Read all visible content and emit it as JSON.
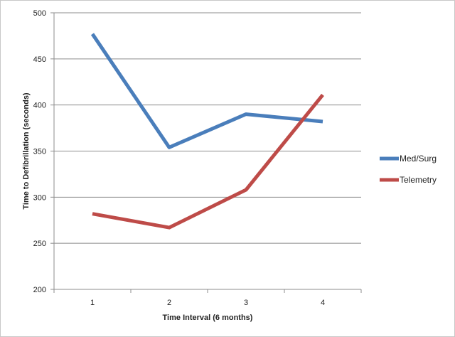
{
  "chart_data": {
    "type": "line",
    "title": "",
    "xlabel": "Time Interval (6 months)",
    "ylabel": "Time to Defibrillation  (seconds)",
    "categories": [
      "1",
      "2",
      "3",
      "4"
    ],
    "ylim": [
      200,
      500
    ],
    "yticks": [
      200,
      250,
      300,
      350,
      400,
      450,
      500
    ],
    "grid": true,
    "legend_position": "right",
    "series": [
      {
        "name": "Med/Surg",
        "color": "#4a7ebb",
        "values": [
          477,
          354,
          390,
          382
        ]
      },
      {
        "name": "Telemetry",
        "color": "#be4b48",
        "values": [
          282,
          267,
          308,
          411
        ]
      }
    ]
  }
}
